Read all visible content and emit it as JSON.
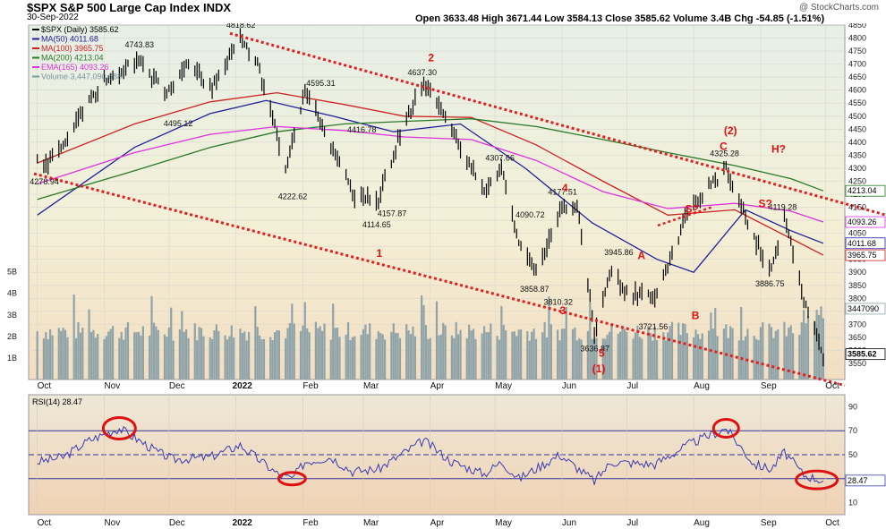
{
  "header": {
    "title": "$SPX S&P 500 Large Cap Index INDX",
    "date": "30-Sep-2022",
    "watermark": "@ StockCharts.com",
    "stats": "Open 3633.48  High 3671.44  Low 3584.13  Close 3585.62  Volume 3.4B  Chg -54.85 (-1.51%)"
  },
  "colors": {
    "price_bg": "#eef0dc",
    "rsi_bg": "#eddcc4",
    "ma50": "#22229a",
    "ma100": "#cc2222",
    "ma200": "#2a7a2a",
    "ema165": "#dd33dd",
    "volume": "#8fa3a8",
    "annotation": "#dd1111"
  },
  "chart_data": [
    {
      "type": "line",
      "title": "$SPX S&P 500 Large Cap Index INDX",
      "ylim": [
        3550,
        4850
      ],
      "y_ticks": [
        3550,
        3600,
        3650,
        3700,
        3750,
        3800,
        3850,
        3900,
        3950,
        4000,
        4050,
        4100,
        4150,
        4200,
        4250,
        4300,
        4350,
        4400,
        4450,
        4500,
        4550,
        4600,
        4650,
        4700,
        4750,
        4800,
        4850
      ],
      "x_ticks": [
        "Oct",
        "Nov",
        "Dec",
        "2022",
        "Feb",
        "Mar",
        "Apr",
        "May",
        "Jun",
        "Jul",
        "Aug",
        "Sep",
        "Oct"
      ],
      "legend": [
        {
          "label": "$SPX (Daily) 3585.62",
          "color": "#000000"
        },
        {
          "label": "MA(50) 4011.68",
          "color": "#22229a"
        },
        {
          "label": "MA(100) 3965.75",
          "color": "#cc2222"
        },
        {
          "label": "MA(200) 4213.04",
          "color": "#2a7a2a"
        },
        {
          "label": "EMA(165) 4093.26",
          "color": "#dd33dd"
        },
        {
          "label": "Volume 3,447,090,688",
          "color": "#7b9aa3"
        }
      ],
      "legend_position": "top-left",
      "series": [
        {
          "name": "$SPX (Daily)",
          "x": [
            "2021-10-01",
            "2021-10-04",
            "2021-10-13",
            "2021-10-25",
            "2021-11-03",
            "2021-11-18",
            "2021-11-30",
            "2021-12-10",
            "2021-12-20",
            "2022-01-03",
            "2022-01-11",
            "2022-01-24",
            "2022-02-02",
            "2022-02-10",
            "2022-02-24",
            "2022-03-08",
            "2022-03-17",
            "2022-03-29",
            "2022-04-11",
            "2022-04-26",
            "2022-05-04",
            "2022-05-12",
            "2022-05-20",
            "2022-05-31",
            "2022-06-08",
            "2022-06-16",
            "2022-06-24",
            "2022-07-01",
            "2022-07-14",
            "2022-07-29",
            "2022-08-16",
            "2022-08-29",
            "2022-09-06",
            "2022-09-12",
            "2022-09-21",
            "2022-09-30"
          ],
          "values": [
            4350,
            4310,
            4380,
            4560,
            4650,
            4710,
            4580,
            4710,
            4600,
            4796,
            4700,
            4300,
            4590,
            4470,
            4200,
            4180,
            4410,
            4630,
            4450,
            4200,
            4300,
            4020,
            3900,
            4130,
            4160,
            3670,
            3910,
            3820,
            3800,
            4130,
            4300,
            4030,
            3910,
            4110,
            3800,
            3585.62
          ]
        },
        {
          "name": "MA(50)",
          "values_last": 4011.68
        },
        {
          "name": "MA(100)",
          "values_last": 3965.75
        },
        {
          "name": "MA(200)",
          "values_last": 4213.04
        },
        {
          "name": "EMA(165)",
          "values_last": 4093.26
        }
      ],
      "price_labels": [
        "4278.94",
        "4743.83",
        "4495.12",
        "4818.62",
        "4222.62",
        "4595.31",
        "4416.78",
        "4114.65",
        "4157.87",
        "4637.30",
        "4307.66",
        "4090.72",
        "4177.51",
        "3858.87",
        "3810.32",
        "3636.87",
        "3945.86",
        "3721.56",
        "4325.28",
        "4119.28",
        "3886.75"
      ],
      "right_labels": [
        "4213.04",
        "4093.26",
        "4011.68",
        "3965.75",
        "3447090",
        "3585.62"
      ],
      "volume_axis_labels": [
        "1B",
        "2B",
        "3B",
        "4B",
        "5B"
      ],
      "wave_labels": [
        "1",
        "2",
        "3",
        "4",
        "5",
        "A",
        "B",
        "C",
        "(2)",
        "S?",
        "S?",
        "H?",
        "(1)"
      ]
    },
    {
      "type": "line",
      "title": "RSI(14) 28.47",
      "ylim": [
        0,
        100
      ],
      "y_ticks": [
        10,
        30,
        50,
        70,
        90
      ],
      "reference_lines": [
        70,
        50,
        30
      ],
      "x_ticks": [
        "Oct",
        "Nov",
        "Dec",
        "2022",
        "Feb",
        "Mar",
        "Apr",
        "May",
        "Jun",
        "Jul",
        "Aug",
        "Sep",
        "Oct"
      ],
      "series": [
        {
          "name": "RSI(14)",
          "x": [
            "2021-10-01",
            "2021-10-13",
            "2021-10-25",
            "2021-11-08",
            "2021-11-26",
            "2021-12-03",
            "2021-12-20",
            "2022-01-03",
            "2022-01-21",
            "2022-01-27",
            "2022-02-02",
            "2022-02-14",
            "2022-02-24",
            "2022-03-08",
            "2022-03-29",
            "2022-04-11",
            "2022-04-26",
            "2022-05-04",
            "2022-05-12",
            "2022-05-31",
            "2022-06-16",
            "2022-06-24",
            "2022-07-14",
            "2022-07-29",
            "2022-08-16",
            "2022-08-29",
            "2022-09-06",
            "2022-09-12",
            "2022-09-21",
            "2022-09-30"
          ],
          "values": [
            44,
            48,
            62,
            72,
            52,
            46,
            48,
            58,
            33,
            30,
            44,
            48,
            36,
            38,
            62,
            44,
            34,
            44,
            30,
            50,
            28,
            44,
            42,
            58,
            72,
            42,
            38,
            52,
            33,
            28.47
          ]
        }
      ],
      "right_labels": [
        "28.47"
      ]
    }
  ]
}
